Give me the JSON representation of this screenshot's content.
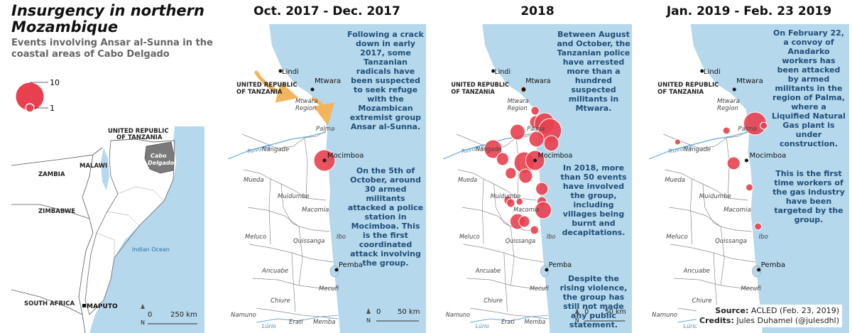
{
  "title": "Insurgency in northern Mozambique",
  "subtitle": "Events involving Ansar al-Sunna in the coastal areas of Cabo Delgado",
  "legend": {
    "max_label": "10",
    "min_label": "1"
  },
  "overview_map": {
    "labels": {
      "tanzania": [
        "UNITED REPUBLIC",
        "OF TANZANIA"
      ],
      "cabo": [
        "Cabo",
        "Delgado"
      ],
      "zambia": "ZAMBIA",
      "malawi": "MALAWI",
      "zimbabwe": "ZIMBABWE",
      "south_africa": "SOUTH AFRICA",
      "maputo": "MAPUTO",
      "indian_ocean": "Indian Ocean",
      "north": "N",
      "zero": "0",
      "scale": "250 km"
    }
  },
  "map_labels": {
    "tanzania": [
      "UNITED REPUBLIC",
      "OF TANZANIA"
    ],
    "lindi": "Lindi",
    "mtwara": "Mtwara",
    "mtwara_region": [
      "Mtwara",
      "Region"
    ],
    "palma": "Palma",
    "ruvuma": "Ruvuma",
    "nangade": "Nangade",
    "mocimboa": "Mocimboa",
    "mueda": "Mueda",
    "muidumbe": "Muidumbe",
    "macomia": "Macomia",
    "meluco": "Meluco",
    "quissanga": "Quissanga",
    "ibo": "Ibo",
    "ancuabe": "Ancuabe",
    "pemba": "Pemba",
    "chiure": "Chiure",
    "mecufi": "Mecufi",
    "namuno": "Namuno",
    "erati": "Erati",
    "memba": "Memba",
    "lurio": "Lúrio",
    "north": "N",
    "zero": "0",
    "scale": "50 km"
  },
  "panels": [
    {
      "title": "Oct. 2017 - Dec. 2017",
      "annotations": [
        "Following a crack down in early 2017, some Tanzanian radicals have been suspected to seek refuge with the Mozambican extremist group Ansar al-Sunna.",
        "On the 5th of October, around 30 armed militants attacked a police station in Mocimboa. This is the first coordinated attack involving the group."
      ]
    },
    {
      "title": "2018",
      "annotations": [
        "Between August and October, the Tanzanian police have arrested more than a hundred suspected militants in Mtwara.",
        "In 2018, more than 50 events have involved the group, including villages being burnt and decapitations.",
        "Despite the rising violence, the group has still not made any public statement."
      ]
    },
    {
      "title": "Jan. 2019 - Feb. 23 2019",
      "annotations": [
        "On February 22, a convoy of Anadarko workers has been attacked by armed militants in the region of Palma, where a Liquified Natural Gas plant is under construction.",
        "This is the first time workers of the gas industry have been targeted by the group."
      ]
    }
  ],
  "credits": {
    "source_label": "Source:",
    "source": "ACLED (Feb. 23, 2019)",
    "credits_label": "Credits:",
    "credits": "Jules Duhamel (@julesdhl)"
  },
  "colors": {
    "sea": "#b5d8ec",
    "land": "#ffffff",
    "cabo_delgado": "#7a7a7a",
    "event": "#e8404f",
    "annotation": "#1f4e79",
    "arrow": "#f2b45c"
  }
}
